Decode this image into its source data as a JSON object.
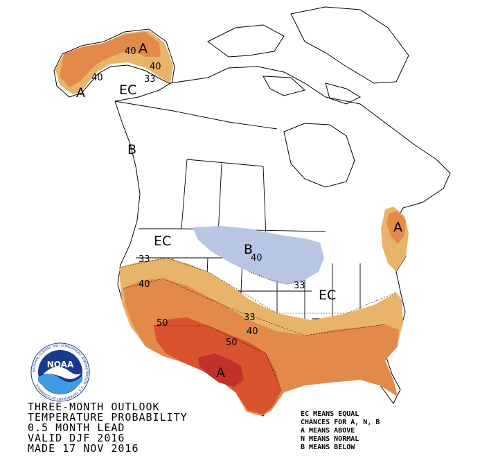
{
  "map": {
    "labels": {
      "alaska_ec": "EC",
      "alaska_a_north": "A",
      "alaska_a_west": "A",
      "alaska_40_north": "40",
      "alaska_40_east": "40",
      "alaska_40_west": "40",
      "alaska_33": "33",
      "bc_b": "B",
      "west_ec": "EC",
      "west_33": "33",
      "west_40": "40",
      "sw_50": "50",
      "plains_33": "33",
      "plains_40": "40",
      "texas_50": "50",
      "texas_a": "A",
      "northern_b": "B",
      "northern_40": "40",
      "northern_33": "33",
      "east_ec": "EC",
      "maine_a": "A"
    },
    "colors": {
      "above_33": "#e8b46a",
      "above_40": "#e38a4a",
      "above_50": "#d9532e",
      "above_60": "#c2302a",
      "below_33": "#b8c6e3"
    }
  },
  "title": {
    "line1": "THREE-MONTH OUTLOOK",
    "line2": "TEMPERATURE PROBABILITY",
    "line3": "0.5 MONTH LEAD",
    "line4": "VALID DJF 2016",
    "line5": "MADE 17 NOV 2016"
  },
  "legend": {
    "line1": "EC MEANS EQUAL",
    "line2": "CHANCES FOR A, N, B",
    "line3": "A MEANS ABOVE",
    "line4": "N MEANS NORMAL",
    "line5": "B MEANS BELOW"
  },
  "logo": {
    "text": "NOAA",
    "ring_text": "NATIONAL OCEANIC AND ATMOSPHERIC ADMINISTRATION · U.S. DEPARTMENT OF COMMERCE"
  }
}
